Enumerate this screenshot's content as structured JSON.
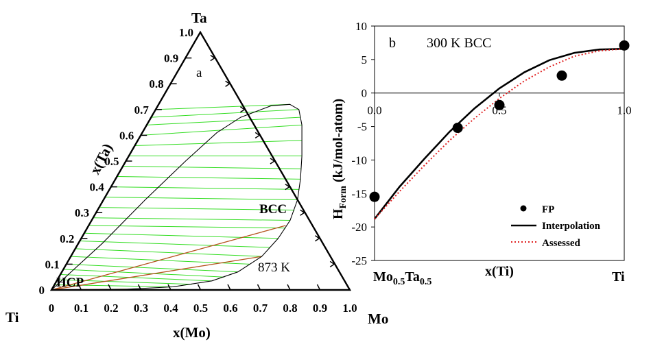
{
  "chart_data": [
    {
      "type": "ternary",
      "panel_label": "a",
      "temperature_label": "873 K",
      "vertices": {
        "top": "Ta",
        "left": "Ti",
        "right": "Mo"
      },
      "axis_labels": {
        "bottom": "x(Mo)",
        "left": "x(Ta)"
      },
      "ticks": [
        "0",
        "0.1",
        "0.2",
        "0.3",
        "0.4",
        "0.5",
        "0.6",
        "0.7",
        "0.8",
        "0.9",
        "1.0"
      ],
      "phase_labels": {
        "bcc": "BCC",
        "hcp": "HCP"
      },
      "colors": {
        "tie_lines_green": "#33dd22",
        "tie_lines_brown": "#b5541e",
        "boundary": "#000000"
      },
      "bcc_boundary": [
        {
          "mo": 0.0,
          "ta": 0.0
        },
        {
          "mo": 0.08,
          "ta": 0.18
        },
        {
          "mo": 0.14,
          "ta": 0.35
        },
        {
          "mo": 0.2,
          "ta": 0.5
        },
        {
          "mo": 0.25,
          "ta": 0.61
        },
        {
          "mo": 0.3,
          "ta": 0.67
        },
        {
          "mo": 0.38,
          "ta": 0.715
        },
        {
          "mo": 0.44,
          "ta": 0.72
        },
        {
          "mo": 0.48,
          "ta": 0.7
        },
        {
          "mo": 0.52,
          "ta": 0.64
        },
        {
          "mo": 0.58,
          "ta": 0.52
        },
        {
          "mo": 0.62,
          "ta": 0.43
        },
        {
          "mo": 0.65,
          "ta": 0.35
        },
        {
          "mo": 0.665,
          "ta": 0.27
        },
        {
          "mo": 0.66,
          "ta": 0.2
        },
        {
          "mo": 0.64,
          "ta": 0.13
        },
        {
          "mo": 0.59,
          "ta": 0.07
        },
        {
          "mo": 0.52,
          "ta": 0.035
        },
        {
          "mo": 0.4,
          "ta": 0.012
        },
        {
          "mo": 0.25,
          "ta": 0.003
        },
        {
          "mo": 0.1,
          "ta": 0.0
        },
        {
          "mo": 0.0,
          "ta": 0.0
        }
      ],
      "tie_line_end_green": [
        {
          "mo": 0.44,
          "ta": 0.72
        },
        {
          "mo": 0.48,
          "ta": 0.7
        },
        {
          "mo": 0.5,
          "ta": 0.67
        },
        {
          "mo": 0.52,
          "ta": 0.64
        },
        {
          "mo": 0.55,
          "ta": 0.58
        },
        {
          "mo": 0.58,
          "ta": 0.52
        },
        {
          "mo": 0.6,
          "ta": 0.47
        },
        {
          "mo": 0.62,
          "ta": 0.43
        },
        {
          "mo": 0.635,
          "ta": 0.39
        },
        {
          "mo": 0.65,
          "ta": 0.35
        },
        {
          "mo": 0.66,
          "ta": 0.31
        },
        {
          "mo": 0.665,
          "ta": 0.27
        },
        {
          "mo": 0.665,
          "ta": 0.24
        },
        {
          "mo": 0.66,
          "ta": 0.2
        },
        {
          "mo": 0.65,
          "ta": 0.165
        },
        {
          "mo": 0.64,
          "ta": 0.13
        },
        {
          "mo": 0.615,
          "ta": 0.1
        },
        {
          "mo": 0.59,
          "ta": 0.07
        },
        {
          "mo": 0.555,
          "ta": 0.05
        },
        {
          "mo": 0.52,
          "ta": 0.035
        },
        {
          "mo": 0.46,
          "ta": 0.022
        },
        {
          "mo": 0.4,
          "ta": 0.012
        }
      ],
      "tie_line_start_green_ta": [
        0.7,
        0.67,
        0.64,
        0.6,
        0.56,
        0.52,
        0.48,
        0.44,
        0.4,
        0.36,
        0.32,
        0.28,
        0.25,
        0.22,
        0.19,
        0.16,
        0.13,
        0.1,
        0.08,
        0.06,
        0.04,
        0.02
      ],
      "tie_lines_brown": [
        {
          "from": {
            "mo": 0.0,
            "ta": 0.0
          },
          "to": {
            "mo": 0.66,
            "ta": 0.25
          }
        },
        {
          "from": {
            "mo": 0.0,
            "ta": 0.0
          },
          "to": {
            "mo": 0.64,
            "ta": 0.13
          }
        },
        {
          "from": {
            "mo": 0.0,
            "ta": 0.0
          },
          "to": {
            "mo": 0.25,
            "ta": 0.003
          }
        }
      ]
    },
    {
      "type": "scatter",
      "panel_label": "b",
      "title": "300 K BCC",
      "ylabel_main": "H",
      "ylabel_sub": "Form",
      "ylabel_tail": " (kJ/mol-atom)",
      "xlabel": "x(Ti)",
      "x_end_labels": {
        "left_main": "Mo",
        "left_sub1": "0.5",
        "left_mid": "Ta",
        "left_sub2": "0.5",
        "right": "Ti"
      },
      "xlim": [
        0,
        1
      ],
      "ylim": [
        -25,
        10
      ],
      "x_ticks": [
        "0.0",
        "0.5",
        "1.0"
      ],
      "x_tick_values": [
        0,
        0.5,
        1
      ],
      "y_ticks": [
        "10",
        "5",
        "0",
        "-5",
        "-10",
        "-15",
        "-20",
        "-25"
      ],
      "y_tick_values": [
        10,
        5,
        0,
        -5,
        -10,
        -15,
        -20,
        -25
      ],
      "colors": {
        "fp": "#000000",
        "interpolation": "#000000",
        "assessed": "#e02020"
      },
      "series": [
        {
          "name": "FP",
          "style": "markers",
          "x": [
            0.0,
            0.333,
            0.5,
            0.75,
            1.0
          ],
          "y": [
            -15.5,
            -5.2,
            -1.8,
            2.6,
            7.1
          ]
        },
        {
          "name": "Interpolation",
          "style": "solid",
          "x": [
            0.0,
            0.1,
            0.2,
            0.3,
            0.4,
            0.5,
            0.6,
            0.7,
            0.8,
            0.9,
            1.0
          ],
          "y": [
            -18.8,
            -14.0,
            -9.8,
            -5.8,
            -2.3,
            0.7,
            3.1,
            4.9,
            6.0,
            6.5,
            6.6
          ]
        },
        {
          "name": "Assessed",
          "style": "dotted",
          "x": [
            0.0,
            0.1,
            0.2,
            0.3,
            0.4,
            0.5,
            0.6,
            0.7,
            0.8,
            0.9,
            1.0
          ],
          "y": [
            -18.8,
            -14.7,
            -10.8,
            -7.1,
            -3.8,
            -0.8,
            1.8,
            3.9,
            5.5,
            6.3,
            6.6
          ]
        }
      ]
    }
  ]
}
